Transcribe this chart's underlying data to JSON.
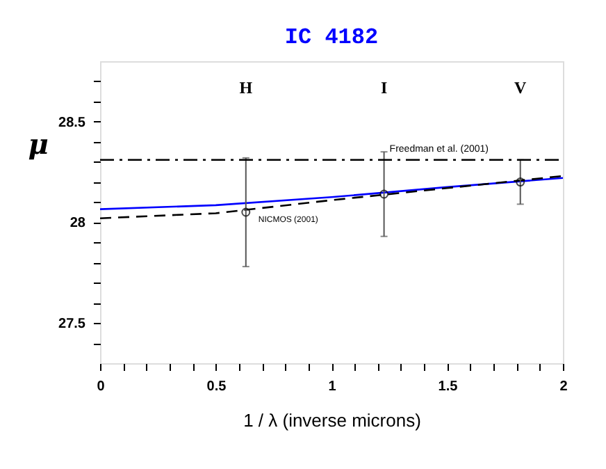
{
  "chart_data": {
    "type": "line",
    "title": "IC 4182",
    "xlabel": "1 / λ (inverse microns)",
    "ylabel": "μ",
    "xlim": [
      0,
      2
    ],
    "ylim": [
      27.3,
      28.8
    ],
    "xticks": [
      0,
      {
        "value": 0.1,
        "label": null
      },
      {
        "value": 0.2,
        "label": null
      },
      {
        "value": 0.3,
        "label": null
      },
      {
        "value": 0.4,
        "label": null
      },
      0.5,
      {
        "value": 0.6,
        "label": null
      },
      {
        "value": 0.7,
        "label": null
      },
      {
        "value": 0.8,
        "label": null
      },
      {
        "value": 0.9,
        "label": null
      },
      1,
      {
        "value": 1.1,
        "label": null
      },
      {
        "value": 1.2,
        "label": null
      },
      {
        "value": 1.3,
        "label": null
      },
      {
        "value": 1.4,
        "label": null
      },
      1.5,
      {
        "value": 1.6,
        "label": null
      },
      {
        "value": 1.7,
        "label": null
      },
      {
        "value": 1.8,
        "label": null
      },
      {
        "value": 1.9,
        "label": null
      },
      2
    ],
    "yticks": [
      {
        "value": 27.4,
        "label": null
      },
      27.5,
      {
        "value": 27.6,
        "label": null
      },
      {
        "value": 27.7,
        "label": null
      },
      {
        "value": 27.8,
        "label": null
      },
      {
        "value": 27.9,
        "label": null
      },
      28,
      {
        "value": 28.1,
        "label": null
      },
      {
        "value": 28.2,
        "label": null
      },
      {
        "value": 28.3,
        "label": null
      },
      {
        "value": 28.4,
        "label": null
      },
      28.5,
      {
        "value": 28.6,
        "label": null
      },
      {
        "value": 28.7,
        "label": null
      }
    ],
    "grid": false,
    "series": [
      {
        "color": "#0000ff",
        "line_style": "solid",
        "x": [
          0,
          0.5,
          1,
          1.5,
          2
        ],
        "values": [
          28.065,
          28.085,
          28.125,
          28.175,
          28.22
        ]
      },
      {
        "color": "#000000",
        "line_style": "dashed",
        "x": [
          0,
          0.5,
          1,
          1.5,
          2
        ],
        "values": [
          28.02,
          28.045,
          28.11,
          28.17,
          28.23
        ]
      },
      {
        "type": "scatter",
        "color": "#000000",
        "marker": "circle",
        "x": [
          0.63,
          1.227,
          1.816
        ],
        "values": [
          28.05,
          28.14,
          28.2
        ],
        "errors": [
          [
            27.78,
            28.32
          ],
          [
            27.93,
            28.35
          ],
          [
            28.09,
            28.31
          ]
        ]
      }
    ],
    "ref_lines": [
      {
        "axis": "y",
        "value": 28.31,
        "label": "Freedman et al. (2001)",
        "color": "#000000",
        "line_style": "dashed"
      }
    ],
    "annotations": [
      "H",
      "I",
      "V",
      {
        "text": "NICMOS (2001)",
        "x": 0.63,
        "y": 28.05
      }
    ]
  }
}
